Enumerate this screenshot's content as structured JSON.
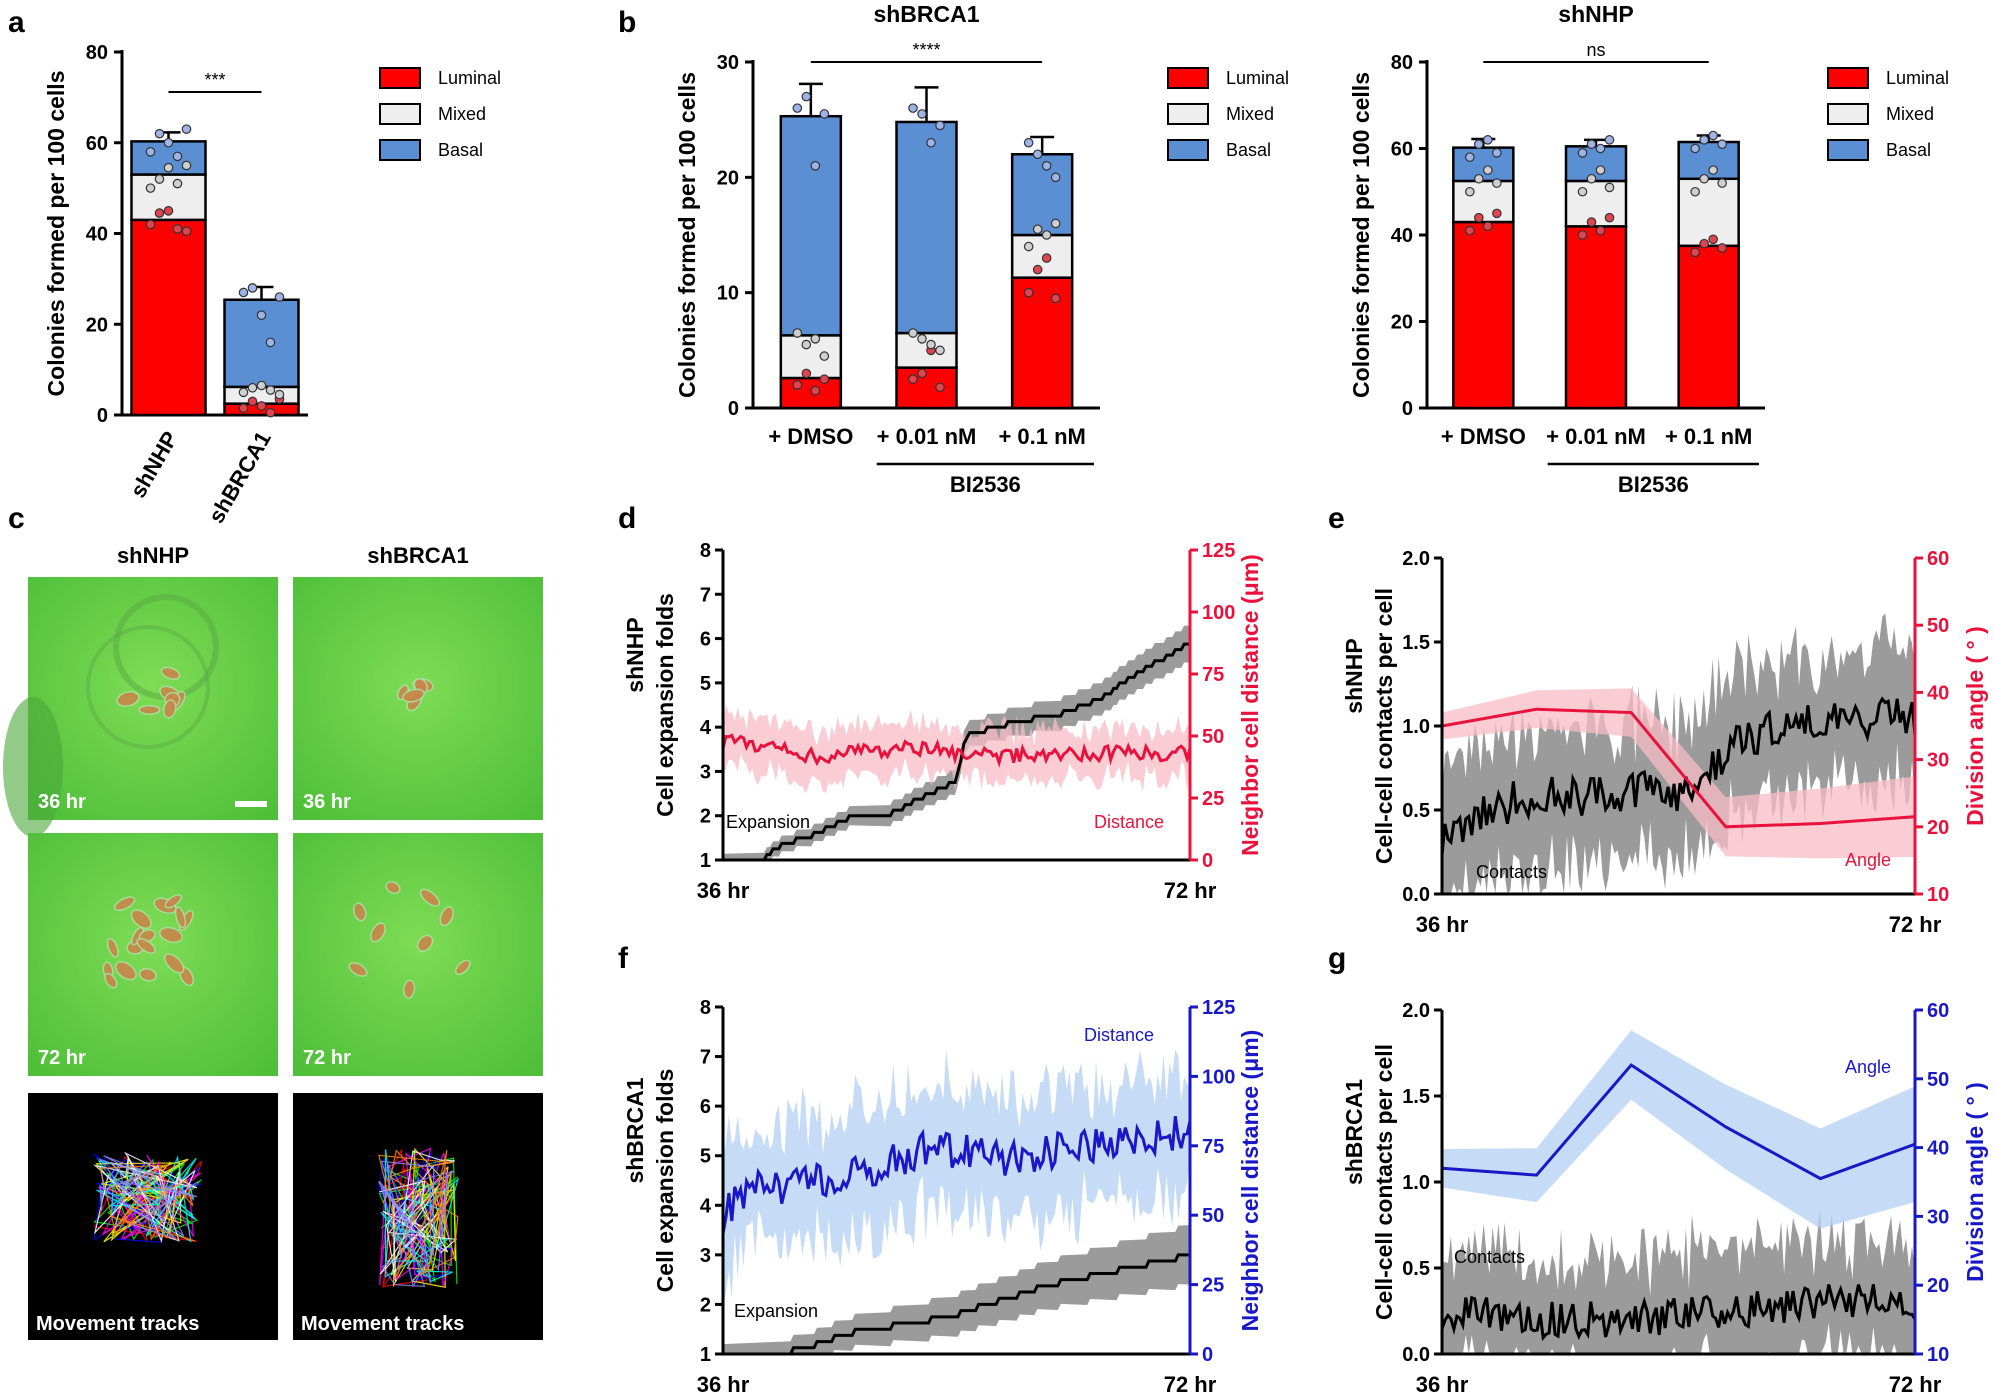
{
  "panel_labels": [
    "a",
    "b",
    "c",
    "d",
    "e",
    "f",
    "g"
  ],
  "colors": {
    "luminal": "#ff0000",
    "mixed": "#eeeeee",
    "basal": "#5b8fd4",
    "red": "#e8123c",
    "pink": "#f7bcc4",
    "blue": "#1818c8",
    "lightblue": "#b3cff2",
    "grey": "#8a8a8a",
    "green": "#6cc94a"
  },
  "panel_c": {
    "col_titles": [
      "shNHP",
      "shBRCA1"
    ],
    "time_labels": [
      "36 hr",
      "72 hr"
    ],
    "track_label": "Movement tracks"
  },
  "chart_data": [
    {
      "id": "a",
      "type": "bar",
      "stacked": true,
      "title": "",
      "ylabel": "Colonies formed per 100 cells",
      "ylim": [
        0,
        80
      ],
      "yticks": [
        0,
        20,
        40,
        60,
        80
      ],
      "categories": [
        "shNHP",
        "shBRCA1"
      ],
      "series": [
        {
          "name": "Luminal",
          "values": [
            43,
            2.5
          ]
        },
        {
          "name": "Mixed",
          "values": [
            10,
            3.7
          ]
        },
        {
          "name": "Basal",
          "values": [
            7.3,
            19.2
          ]
        }
      ],
      "errors_top": [
        2,
        2.8
      ],
      "legend": [
        "Luminal",
        "Mixed",
        "Basal"
      ],
      "significance": "***",
      "points": {
        "luminal": [
          [
            42,
            44.5,
            45,
            41,
            40.5
          ],
          [
            1.5,
            3,
            2,
            0.5,
            3.5
          ]
        ],
        "mixed": [
          [
            50,
            52,
            54.5,
            51,
            55
          ],
          [
            5,
            6,
            6.5,
            5.5,
            4.5
          ]
        ],
        "basal": [
          [
            58,
            62,
            60,
            57,
            63
          ],
          [
            27,
            28,
            22,
            16,
            26
          ]
        ]
      }
    },
    {
      "id": "b1",
      "type": "bar",
      "stacked": true,
      "title": "shBRCA1",
      "ylabel": "Colonies formed per 100 cells",
      "ylim": [
        0,
        30
      ],
      "yticks": [
        0,
        10,
        20,
        30
      ],
      "categories": [
        "+ DMSO",
        "+ 0.01 nM",
        "+ 0.1 nM"
      ],
      "group_label": "BI2536",
      "series": [
        {
          "name": "Luminal",
          "values": [
            2.6,
            3.5,
            11.3
          ]
        },
        {
          "name": "Mixed",
          "values": [
            3.7,
            3.0,
            3.7
          ]
        },
        {
          "name": "Basal",
          "values": [
            19,
            18.3,
            7
          ]
        }
      ],
      "errors_top": [
        2.8,
        3,
        1.5
      ],
      "legend": [
        "Luminal",
        "Mixed",
        "Basal"
      ],
      "significance": "****",
      "points": {
        "luminal": [
          [
            2,
            3,
            1.5,
            2.5
          ],
          [
            2.5,
            3,
            5,
            1.8
          ],
          [
            10,
            12,
            13,
            9.5
          ]
        ],
        "mixed": [
          [
            6.5,
            5.5,
            6,
            4.5
          ],
          [
            6.5,
            6,
            5.5,
            5
          ],
          [
            14,
            15.5,
            15,
            16
          ]
        ],
        "basal": [
          [
            26,
            27,
            21,
            25.5
          ],
          [
            26,
            25.5,
            23,
            24.5
          ],
          [
            23,
            22,
            21,
            20
          ]
        ]
      }
    },
    {
      "id": "b2",
      "type": "bar",
      "stacked": true,
      "title": "shNHP",
      "ylabel": "Colonies formed per 100 cells",
      "ylim": [
        0,
        80
      ],
      "yticks": [
        0,
        20,
        40,
        60,
        80
      ],
      "categories": [
        "+ DMSO",
        "+ 0.01 nM",
        "+ 0.1 nM"
      ],
      "group_label": "BI2536",
      "series": [
        {
          "name": "Luminal",
          "values": [
            43,
            42,
            37.5
          ]
        },
        {
          "name": "Mixed",
          "values": [
            9.5,
            10.5,
            15.5
          ]
        },
        {
          "name": "Basal",
          "values": [
            7.7,
            8,
            8.5
          ]
        }
      ],
      "errors_top": [
        2,
        1.5,
        1.5
      ],
      "legend": [
        "Luminal",
        "Mixed",
        "Basal"
      ],
      "significance": "ns",
      "points": {
        "luminal": [
          [
            41,
            44,
            42,
            45
          ],
          [
            40,
            43,
            41,
            44
          ],
          [
            36,
            38,
            39,
            37
          ]
        ],
        "mixed": [
          [
            50,
            53,
            55,
            52
          ],
          [
            50,
            53,
            55,
            51
          ],
          [
            50,
            53,
            55,
            52
          ]
        ],
        "basal": [
          [
            58,
            61,
            62,
            59
          ],
          [
            59,
            61,
            60,
            62
          ],
          [
            60,
            62,
            63,
            61
          ]
        ]
      }
    },
    {
      "id": "d",
      "type": "line",
      "row_label": "shNHP",
      "x_labels": [
        "36 hr",
        "72 hr"
      ],
      "ylabel": "Cell expansion folds",
      "ylim": [
        1,
        8
      ],
      "yticks": [
        1,
        2,
        3,
        4,
        5,
        6,
        7,
        8
      ],
      "y2label": "Neighbor cell distance (μm)",
      "y2lim": [
        0,
        125
      ],
      "y2ticks": [
        0,
        25,
        50,
        75,
        100,
        125
      ],
      "annotations": [
        "Expansion",
        "Distance"
      ],
      "series": [
        {
          "name": "Expansion",
          "axis": "left",
          "kind": "step",
          "x": [
            0,
            0.08,
            0.12,
            0.2,
            0.28,
            0.35,
            0.5,
            0.52,
            0.62,
            0.72,
            0.8,
            0.9,
            1.0
          ],
          "y": [
            1,
            1,
            1.3,
            1.6,
            2,
            2,
            2.8,
            3.8,
            4.1,
            4.3,
            4.6,
            5.3,
            5.9
          ],
          "band": 0.35
        },
        {
          "name": "Distance",
          "axis": "right",
          "kind": "noisy",
          "x": [
            0,
            0.2,
            0.4,
            0.6,
            0.8,
            1.0
          ],
          "y": [
            48,
            42,
            45,
            42,
            43,
            43
          ],
          "band": 10
        }
      ]
    },
    {
      "id": "e",
      "type": "line",
      "row_label": "shNHP",
      "x_labels": [
        "36 hr",
        "72 hr"
      ],
      "ylabel": "Cell-cell contacts per cell",
      "ylim": [
        0,
        2
      ],
      "yticks": [
        "0.0",
        "0.5",
        "1.0",
        "1.5",
        "2.0"
      ],
      "y2label": "Division angle ( ° )",
      "y2lim": [
        10,
        60
      ],
      "y2ticks": [
        10,
        20,
        30,
        40,
        50,
        60
      ],
      "annotations": [
        "Contacts",
        "Angle"
      ],
      "series": [
        {
          "name": "Contacts",
          "axis": "left",
          "kind": "noisy",
          "x": [
            0,
            0.1,
            0.2,
            0.3,
            0.4,
            0.5,
            0.6,
            0.7,
            0.8,
            0.9,
            1.0
          ],
          "y": [
            0.35,
            0.5,
            0.6,
            0.58,
            0.62,
            0.6,
            0.85,
            0.98,
            1.05,
            1.05,
            1.05
          ],
          "band": 0.4
        },
        {
          "name": "Angle",
          "axis": "right",
          "kind": "poly",
          "x": [
            0,
            0.2,
            0.4,
            0.6,
            0.8,
            1.0
          ],
          "y": [
            35,
            37.5,
            37,
            20,
            20.5,
            21.5
          ],
          "band": 5
        }
      ]
    },
    {
      "id": "f",
      "type": "line",
      "row_label": "shBRCA1",
      "x_labels": [
        "36 hr",
        "72 hr"
      ],
      "ylabel": "Cell expansion folds",
      "ylim": [
        1,
        8
      ],
      "yticks": [
        1,
        2,
        3,
        4,
        5,
        6,
        7,
        8
      ],
      "y2label": "Neighbor cell distance (μm)",
      "y2lim": [
        0,
        125
      ],
      "y2ticks": [
        0,
        25,
        50,
        75,
        100,
        125
      ],
      "annotations": [
        "Expansion",
        "Distance"
      ],
      "series": [
        {
          "name": "Expansion",
          "axis": "left",
          "kind": "step",
          "x": [
            0,
            0.12,
            0.2,
            0.3,
            0.4,
            0.5,
            0.6,
            0.7,
            0.8,
            0.9,
            1.0
          ],
          "y": [
            1,
            1,
            1.2,
            1.5,
            1.6,
            1.8,
            2.1,
            2.4,
            2.6,
            2.8,
            3.0
          ],
          "band": 0.5
        },
        {
          "name": "Distance",
          "axis": "right",
          "kind": "noisy",
          "x": [
            0,
            0.05,
            0.15,
            0.3,
            0.45,
            0.6,
            0.75,
            0.9,
            1.0
          ],
          "y": [
            50,
            60,
            60,
            65,
            75,
            70,
            75,
            78,
            80
          ],
          "band": 22
        }
      ]
    },
    {
      "id": "g",
      "type": "line",
      "row_label": "shBRCA1",
      "x_labels": [
        "36 hr",
        "72 hr"
      ],
      "ylabel": "Cell-cell contacts per cell",
      "ylim": [
        0,
        2
      ],
      "yticks": [
        "0.0",
        "0.5",
        "1.0",
        "1.5",
        "2.0"
      ],
      "y2label": "Division angle ( ° )",
      "y2lim": [
        10,
        60
      ],
      "y2ticks": [
        10,
        20,
        30,
        40,
        50,
        60
      ],
      "annotations": [
        "Contacts",
        "Angle"
      ],
      "series": [
        {
          "name": "Contacts",
          "axis": "left",
          "kind": "noisy",
          "x": [
            0,
            0.2,
            0.4,
            0.6,
            0.8,
            1.0
          ],
          "y": [
            0.25,
            0.2,
            0.2,
            0.25,
            0.3,
            0.3
          ],
          "band": 0.35
        },
        {
          "name": "Angle",
          "axis": "right",
          "kind": "poly",
          "x": [
            0,
            0.2,
            0.4,
            0.6,
            0.8,
            1.0
          ],
          "y": [
            37,
            36,
            52,
            43,
            35.5,
            40.5
          ],
          "band": 7
        }
      ]
    }
  ]
}
